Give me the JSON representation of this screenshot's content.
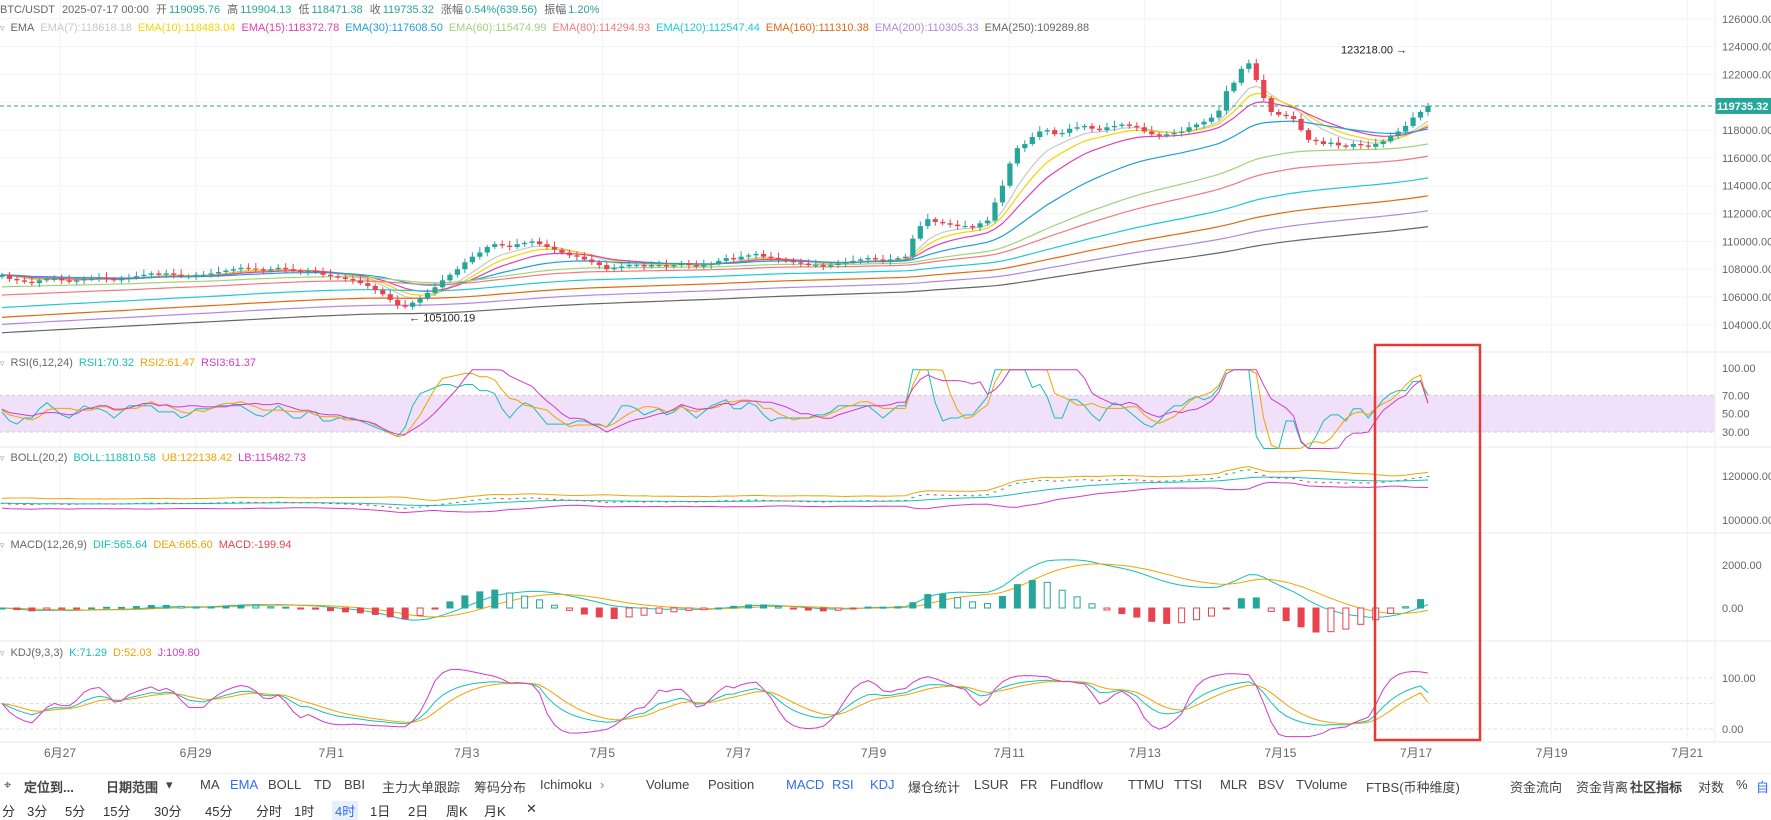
{
  "header": {
    "symbol": "BTC/USDT",
    "datetime": "2025-07-17 00:00",
    "open_label": "开",
    "open": "119095.76",
    "high_label": "高",
    "high": "119904.13",
    "low_label": "低",
    "low": "118471.38",
    "close_label": "收",
    "close": "119735.32",
    "change_label": "涨幅",
    "change": "0.54%(639.56)",
    "amp_label": "振幅",
    "amp": "1.20%"
  },
  "ema_legend": {
    "title": "EMA",
    "items": [
      {
        "label": "EMA(7):118618.18",
        "color": "#c8c8c8"
      },
      {
        "label": "EMA(10):118483.04",
        "color": "#f5d400"
      },
      {
        "label": "EMA(15):118372.78",
        "color": "#e040b0"
      },
      {
        "label": "EMA(30):117608.50",
        "color": "#1f9ed8"
      },
      {
        "label": "EMA(60):115474.99",
        "color": "#9ed37a"
      },
      {
        "label": "EMA(80):114294.93",
        "color": "#f07a80"
      },
      {
        "label": "EMA(120):112547.44",
        "color": "#1ec8d8"
      },
      {
        "label": "EMA(160):111310.38",
        "color": "#e06a10"
      },
      {
        "label": "EMA(200):110305.33",
        "color": "#b088e0"
      },
      {
        "label": "EMA(250):109289.88",
        "color": "#666666"
      }
    ]
  },
  "rsi_legend": {
    "title": "RSI(6,12,24)",
    "items": [
      {
        "label": "RSI1:70.32",
        "color": "#14c1b6"
      },
      {
        "label": "RSI2:61.47",
        "color": "#f0a400"
      },
      {
        "label": "RSI3:61.37",
        "color": "#d03cc8"
      }
    ]
  },
  "boll_legend": {
    "title": "BOLL(20,2)",
    "items": [
      {
        "label": "BOLL:118810.58",
        "color": "#14c1b6"
      },
      {
        "label": "UB:122138.42",
        "color": "#f0a400"
      },
      {
        "label": "LB:115482.73",
        "color": "#d03cc8"
      }
    ]
  },
  "macd_legend": {
    "title": "MACD(12,26,9)",
    "items": [
      {
        "label": "DIF:565.64",
        "color": "#14c1b6"
      },
      {
        "label": "DEA:665.60",
        "color": "#f0a400"
      },
      {
        "label": "MACD:-199.94",
        "color": "#e8434e"
      }
    ]
  },
  "kdj_legend": {
    "title": "KDJ(9,3,3)",
    "items": [
      {
        "label": "K:71.29",
        "color": "#14c1b6"
      },
      {
        "label": "D:52.03",
        "color": "#f0a400"
      },
      {
        "label": "J:109.80",
        "color": "#d03cc8"
      }
    ]
  },
  "toolbar": {
    "tab_locate": "定位到...",
    "tab_range": "日期范围",
    "main_indicators": [
      "MA",
      "EMA",
      "BOLL",
      "TD",
      "BBI",
      "主力大单跟踪",
      "筹码分布",
      "Ichimoku"
    ],
    "sub_indicators": [
      "Volume",
      "Position",
      "MACD",
      "RSI",
      "KDJ",
      "爆仓统计",
      "LSUR",
      "FR",
      "Fundflow",
      "TTMU",
      "TTSI",
      "MLR",
      "BSV",
      "TVolume",
      "FTBS(币种维度)",
      "资金流向",
      "资金背离"
    ],
    "community": "社区指标",
    "log_label": "对数",
    "pct_label": "%",
    "auto_label": "自"
  },
  "timeframes": [
    "分",
    "3分",
    "5分",
    "15分",
    "30分",
    "45分",
    "分时",
    "1时",
    "4时",
    "1日",
    "2日",
    "周K",
    "月K"
  ],
  "selected_timeframe": "4时",
  "colors": {
    "up": "#26a69a",
    "down": "#e8434e",
    "accent": "#2f6fed",
    "highlight_box": "#e53935",
    "rsi_band": "#f0e0fa"
  },
  "chart_data": [
    {
      "type": "candlestick",
      "title": "BTC/USDT",
      "x": [
        "6月27",
        "6月29",
        "7月1",
        "7月3",
        "7月5",
        "7月7",
        "7月9",
        "7月11",
        "7月13",
        "7月15",
        "7月17",
        "7月19",
        "7月21"
      ],
      "y_ticks": [
        104000,
        106000,
        108000,
        110000,
        112000,
        114000,
        116000,
        118000,
        120000,
        122000,
        124000,
        126000
      ],
      "ylim": [
        103200,
        126200
      ],
      "last_price": 119735.32,
      "annotations": [
        {
          "label": "123218.00",
          "value": 123218.0,
          "date": "7月14"
        },
        {
          "label": "105100.19",
          "value": 105100.19,
          "date": "7月2"
        }
      ],
      "close_series": [
        107600,
        107300,
        107200,
        107100,
        107000,
        107200,
        107300,
        107300,
        107200,
        107100,
        107200,
        107300,
        107300,
        107400,
        107300,
        107200,
        107300,
        107400,
        107500,
        107600,
        107700,
        107600,
        107700,
        107600,
        107500,
        107500,
        107600,
        107600,
        107700,
        107800,
        107900,
        108000,
        108100,
        108050,
        108000,
        107900,
        108000,
        108100,
        108000,
        107900,
        107800,
        107900,
        107800,
        107600,
        107500,
        107400,
        107300,
        107200,
        107000,
        106800,
        106500,
        106200,
        105800,
        105400,
        105300,
        105600,
        105900,
        106300,
        106700,
        107200,
        107600,
        108000,
        108500,
        108900,
        109200,
        109600,
        109800,
        109700,
        109600,
        109800,
        109900,
        110000,
        109800,
        109600,
        109400,
        109200,
        109000,
        108900,
        108700,
        108500,
        108300,
        108000,
        108100,
        108200,
        108300,
        108300,
        108200,
        108300,
        108300,
        108200,
        108300,
        108400,
        108300,
        108200,
        108300,
        108400,
        108600,
        108800,
        108700,
        108900,
        109000,
        109100,
        108900,
        108800,
        108700,
        108600,
        108500,
        108400,
        108300,
        108300,
        108200,
        108300,
        108400,
        108500,
        108600,
        108700,
        108800,
        108700,
        108600,
        108700,
        108800,
        108900,
        110200,
        111100,
        111600,
        111400,
        111300,
        111200,
        111100,
        111100,
        111000,
        111300,
        111500,
        112800,
        114000,
        115600,
        116700,
        117000,
        117500,
        117900,
        118000,
        117700,
        117800,
        118100,
        118200,
        118300,
        118100,
        118000,
        118200,
        118300,
        118400,
        118300,
        118200,
        117900,
        117700,
        117600,
        117700,
        117800,
        117900,
        118200,
        118400,
        118600,
        118900,
        119400,
        120800,
        121400,
        122400,
        122800,
        121600,
        120300,
        119300,
        119100,
        119000,
        118800,
        118000,
        117300,
        117200,
        117000,
        117100,
        116900,
        116800,
        117000,
        116900,
        116800,
        117000,
        117200,
        117600,
        117900,
        118300,
        118900,
        119300,
        119735
      ]
    },
    {
      "type": "line",
      "title": "RSI(6,12,24)",
      "series": [
        {
          "name": "RSI1",
          "last": 70.32
        },
        {
          "name": "RSI2",
          "last": 61.47
        },
        {
          "name": "RSI3",
          "last": 61.37
        }
      ],
      "y_ticks": [
        30,
        50,
        70,
        100
      ],
      "band": [
        30,
        70
      ]
    },
    {
      "type": "line",
      "title": "BOLL(20,2)",
      "series": [
        {
          "name": "BOLL",
          "last": 118810.58
        },
        {
          "name": "UB",
          "last": 122138.42
        },
        {
          "name": "LB",
          "last": 115482.73
        }
      ],
      "y_ticks": [
        100000,
        120000
      ]
    },
    {
      "type": "bar",
      "title": "MACD(12,26,9)",
      "series": [
        {
          "name": "DIF",
          "last": 565.64
        },
        {
          "name": "DEA",
          "last": 665.6
        },
        {
          "name": "MACD",
          "last": -199.94
        }
      ],
      "y_ticks": [
        0,
        2000
      ]
    },
    {
      "type": "line",
      "title": "KDJ(9,3,3)",
      "series": [
        {
          "name": "K",
          "last": 71.29
        },
        {
          "name": "D",
          "last": 52.03
        },
        {
          "name": "J",
          "last": 109.8
        }
      ],
      "y_ticks": [
        0,
        100
      ]
    }
  ]
}
